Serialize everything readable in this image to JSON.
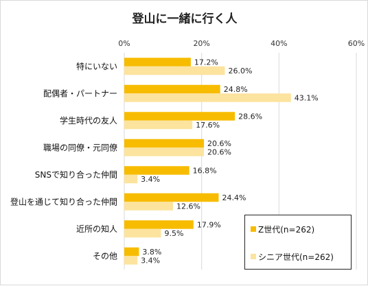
{
  "chart_data": {
    "type": "bar",
    "orientation": "horizontal",
    "title": "登山に一緒に行く人",
    "categories": [
      "特にいない",
      "配偶者・パートナー",
      "学生時代の友人",
      "職場の同僚・元同僚",
      "SNSで知り合った仲間",
      "登山を通じて知り合った仲間",
      "近所の知人",
      "その他"
    ],
    "series": [
      {
        "name": "Z世代(n=262)",
        "color": "#F7BC00",
        "values": [
          17.2,
          24.8,
          28.6,
          20.6,
          16.8,
          24.4,
          17.9,
          3.8
        ],
        "labels": [
          "17.2%",
          "24.8%",
          "28.6%",
          "20.6%",
          "16.8%",
          "24.4%",
          "17.9%",
          "3.8%"
        ]
      },
      {
        "name": "シニア世代(n=262)",
        "color": "#FCE39E",
        "values": [
          26.0,
          43.1,
          17.6,
          20.6,
          3.4,
          12.6,
          9.5,
          3.4
        ],
        "labels": [
          "26.0%",
          "43.1%",
          "17.6%",
          "20.6%",
          "3.4%",
          "12.6%",
          "9.5%",
          "3.4%"
        ]
      }
    ],
    "xlim": [
      0,
      60
    ],
    "ticks": [
      0,
      20,
      40,
      60
    ],
    "tick_labels": [
      "0%",
      "20%",
      "40%",
      "60%"
    ],
    "grid": true,
    "legend_position": "bottom-right"
  }
}
